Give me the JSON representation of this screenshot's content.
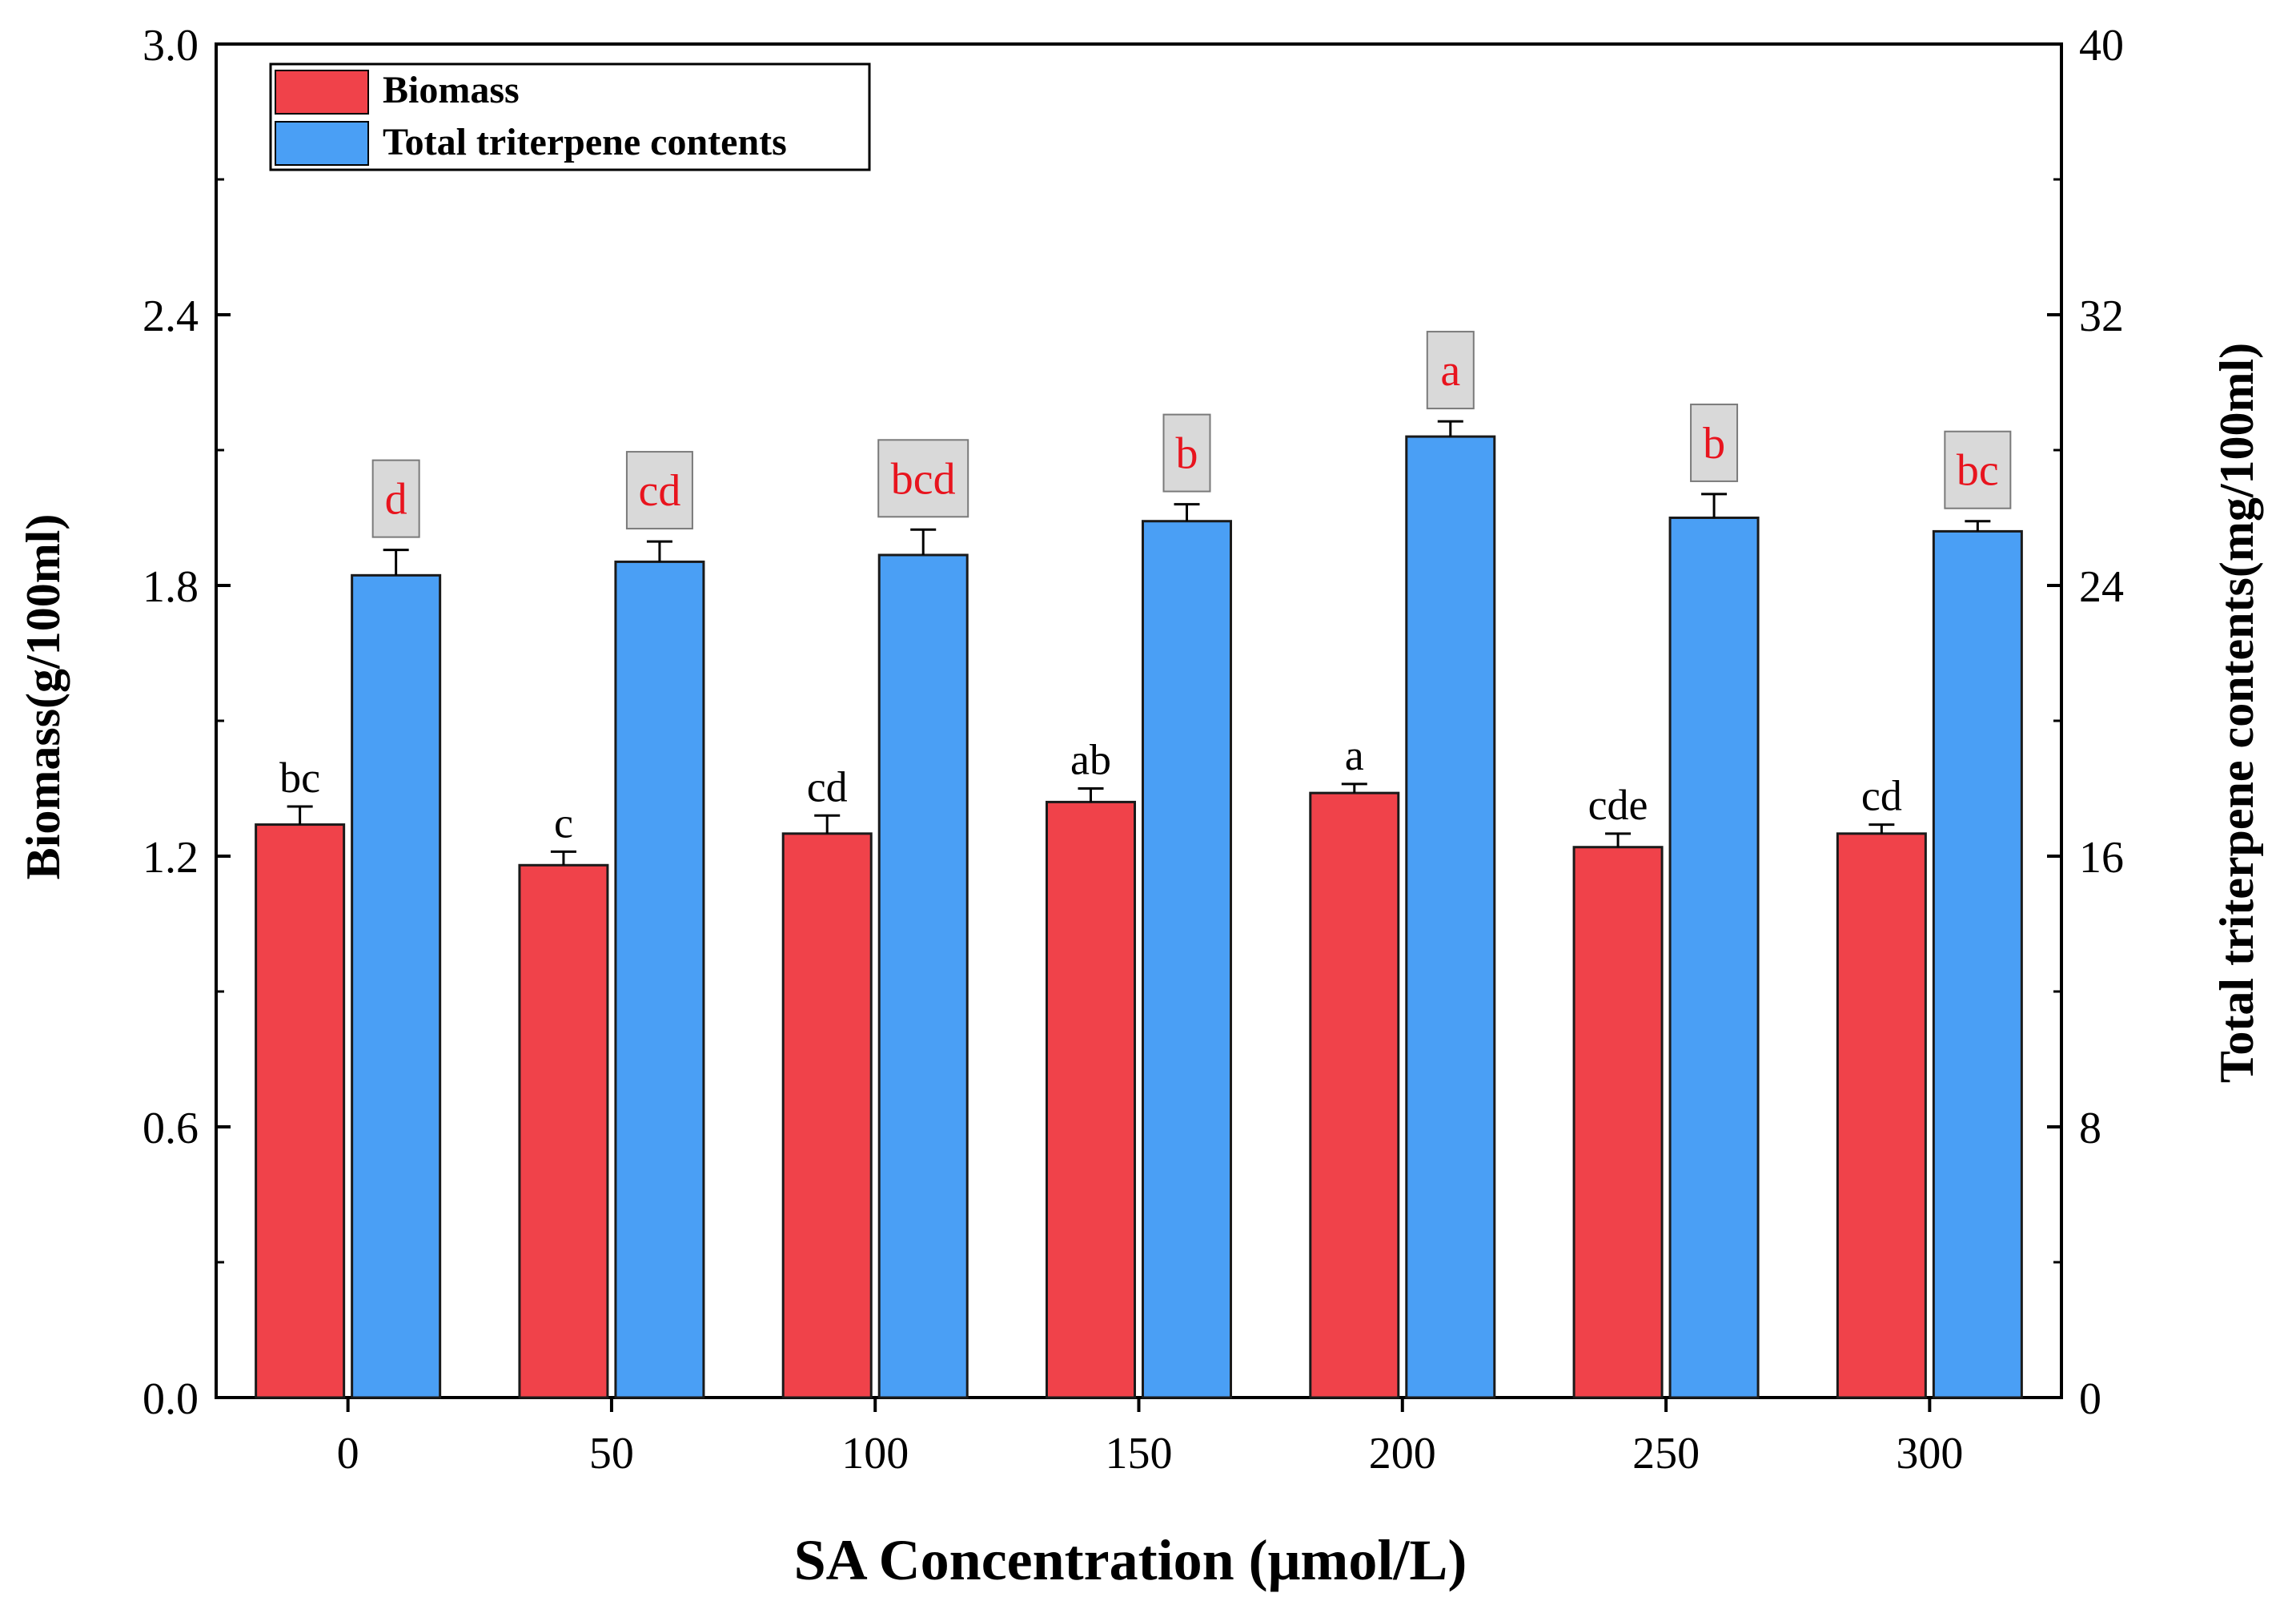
{
  "chart_data": {
    "type": "bar",
    "xlabel": "SA Concentration (μmol/L)",
    "ylabel_left": "Biomass(g/100ml)",
    "ylabel_right": "Total triterpene contents(mg/100ml)",
    "categories": [
      "0",
      "50",
      "100",
      "150",
      "200",
      "250",
      "300"
    ],
    "y_left": {
      "min": 0,
      "max": 3.0,
      "ticks": [
        "0.0",
        "0.6",
        "1.2",
        "1.8",
        "2.4",
        "3.0"
      ],
      "tick_values": [
        0,
        0.6,
        1.2,
        1.8,
        2.4,
        3.0
      ]
    },
    "y_right": {
      "min": 0,
      "max": 40,
      "ticks": [
        "0",
        "8",
        "16",
        "24",
        "32",
        "40"
      ],
      "tick_values": [
        0,
        8,
        16,
        24,
        32,
        40
      ]
    },
    "legend_position": "top-left",
    "series": [
      {
        "name": "Biomass",
        "axis": "left",
        "color": "#f0424a",
        "values": [
          1.27,
          1.18,
          1.25,
          1.32,
          1.34,
          1.22,
          1.25
        ],
        "errors": [
          0.04,
          0.03,
          0.04,
          0.03,
          0.02,
          0.03,
          0.02
        ],
        "labels": [
          "bc",
          "c",
          "cd",
          "ab",
          "a",
          "cde",
          "cd"
        ],
        "label_color": "#000000"
      },
      {
        "name": "Total triterpene contents",
        "axis": "right",
        "color": "#4a9ff5",
        "values": [
          24.3,
          24.7,
          24.9,
          25.9,
          28.4,
          26.0,
          25.6
        ],
        "errors": [
          0.75,
          0.6,
          0.75,
          0.5,
          0.45,
          0.7,
          0.3
        ],
        "labels": [
          "d",
          "cd",
          "bcd",
          "b",
          "a",
          "b",
          "bc"
        ],
        "label_color": "#e8141e",
        "label_box_color": "#d9d9d9"
      }
    ]
  }
}
